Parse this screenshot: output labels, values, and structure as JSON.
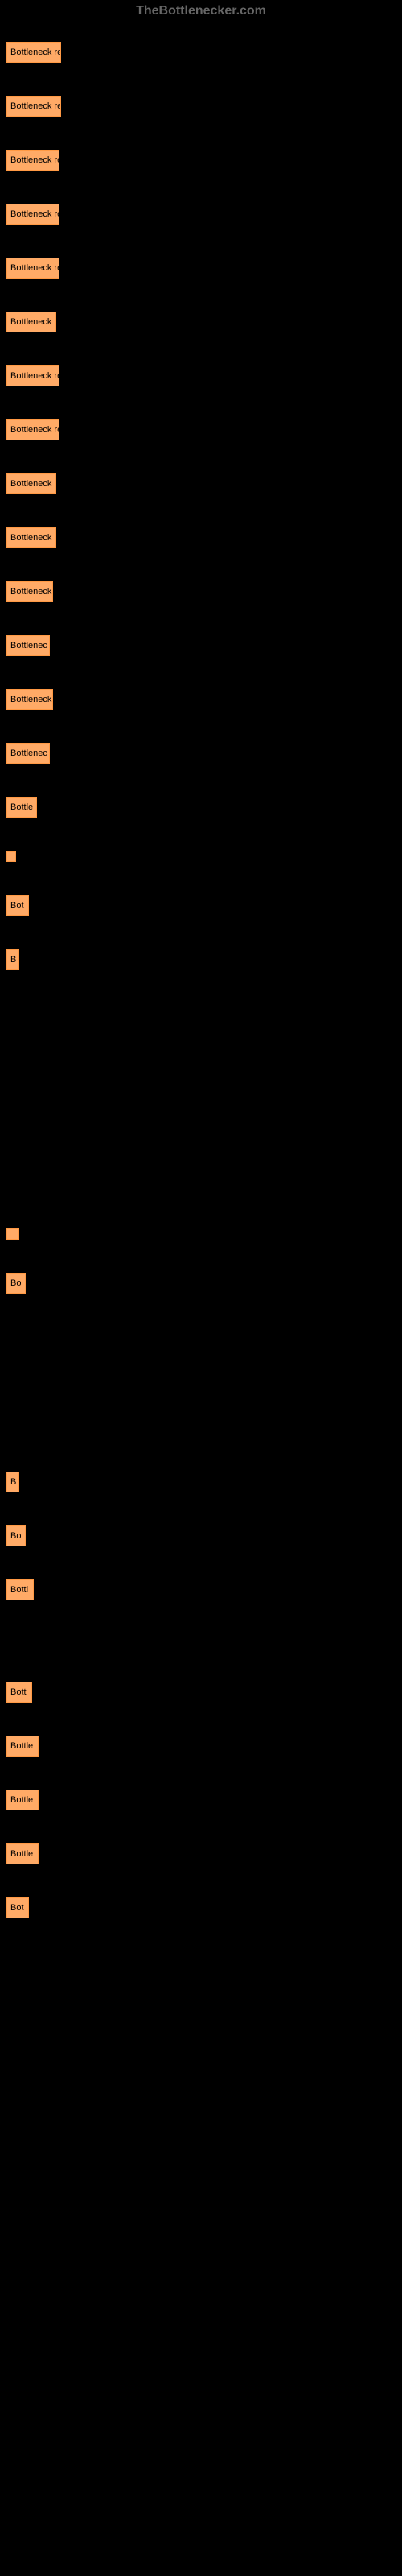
{
  "header": {
    "siteName": "TheBottlenecker.com"
  },
  "links": [
    {
      "label": "Bottleneck res",
      "width": 58
    },
    {
      "label": "Bottleneck res",
      "width": 58
    },
    {
      "label": "Bottleneck re",
      "width": 56
    },
    {
      "label": "Bottleneck re",
      "width": 56
    },
    {
      "label": "Bottleneck re",
      "width": 56
    },
    {
      "label": "Bottleneck r",
      "width": 52
    },
    {
      "label": "Bottleneck re",
      "width": 56
    },
    {
      "label": "Bottleneck re",
      "width": 56
    },
    {
      "label": "Bottleneck r",
      "width": 52
    },
    {
      "label": "Bottleneck r",
      "width": 52
    },
    {
      "label": "Bottleneck",
      "width": 48
    },
    {
      "label": "Bottlenec",
      "width": 44
    },
    {
      "label": "Bottleneck",
      "width": 48
    },
    {
      "label": "Bottlenec",
      "width": 44
    },
    {
      "label": "Bottle",
      "width": 28
    },
    {
      "label": "",
      "width": 2
    },
    {
      "label": "Bot",
      "width": 18
    },
    {
      "label": "B",
      "width": 6
    },
    {
      "label": "",
      "width": 6
    },
    {
      "label": "Bo",
      "width": 14
    },
    {
      "label": "B",
      "width": 6
    },
    {
      "label": "Bo",
      "width": 14
    },
    {
      "label": "Bottl",
      "width": 24
    },
    {
      "label": "Bott",
      "width": 22
    },
    {
      "label": "Bottle",
      "width": 30
    },
    {
      "label": "Bottle",
      "width": 30
    },
    {
      "label": "Bottle",
      "width": 30
    },
    {
      "label": "Bot",
      "width": 18
    }
  ],
  "spacings": [
    12,
    20,
    20,
    20,
    20,
    20,
    20,
    20,
    20,
    20,
    20,
    20,
    20,
    20,
    20,
    20,
    20,
    20,
    300,
    20,
    200,
    20,
    20,
    80,
    20,
    20,
    20,
    20,
    20,
    20
  ],
  "style": {
    "linkBgColor": "#ffaa66",
    "linkBorderColor": "#ff9944",
    "linkTextColor": "#000000",
    "bodyBgColor": "#000000",
    "headerTextColor": "#666666"
  }
}
